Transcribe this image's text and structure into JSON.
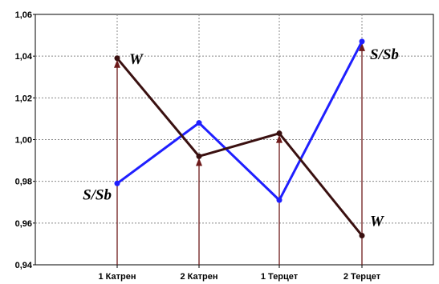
{
  "chart_data": {
    "type": "line",
    "categories": [
      "1 Катрен",
      "2 Катрен",
      "1 Терцет",
      "2 Терцет"
    ],
    "series": [
      {
        "values": [
          0.979,
          1.008,
          0.971,
          1.047
        ],
        "color": "#1f1fff"
      },
      {
        "values": [
          1.039,
          0.992,
          1.003,
          0.954
        ],
        "color": "#3a1010"
      }
    ],
    "arrows_to": [
      1.039,
      0.992,
      1.003,
      1.047
    ],
    "arrow_color": "#6e1a1a",
    "ylim": [
      0.94,
      1.06
    ],
    "yticks": [
      "0,94",
      "0,96",
      "0,98",
      "1,00",
      "1,02",
      "1,04",
      "1,06"
    ],
    "grid": true,
    "annotations": [
      {
        "text": "W",
        "near": "series-2-point-1"
      },
      {
        "text": "S/Sb",
        "near": "series-1-point-1"
      },
      {
        "text": "S/Sb",
        "near": "series-1-point-4"
      },
      {
        "text": "W",
        "near": "series-2-point-4"
      }
    ]
  }
}
